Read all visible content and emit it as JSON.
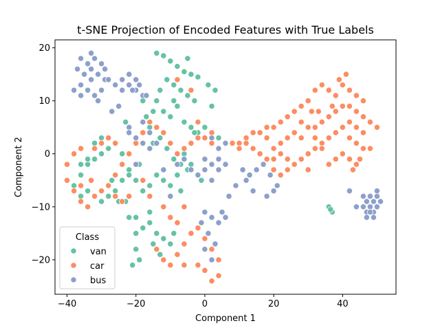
{
  "chart_data": {
    "type": "scatter",
    "title": "t-SNE Projection of Encoded Features with True Labels",
    "xlabel": "Component 1",
    "ylabel": "Component 2",
    "xlim": [
      -43.5,
      55.5
    ],
    "ylim": [
      -26.5,
      21.5
    ],
    "xticks": [
      -40,
      -20,
      0,
      20,
      40
    ],
    "yticks": [
      -20,
      -10,
      0,
      10,
      20
    ],
    "grid": false,
    "legend": {
      "title": "Class",
      "position": "lower-left"
    },
    "series": [
      {
        "name": "van",
        "color": "#66c2a5",
        "points": [
          [
            -14,
            19
          ],
          [
            -12,
            18.5
          ],
          [
            -10,
            17.5
          ],
          [
            -8,
            16.5
          ],
          [
            -6,
            15.5
          ],
          [
            -4,
            15
          ],
          [
            -2,
            14.5
          ],
          [
            -11,
            14
          ],
          [
            -9,
            13
          ],
          [
            -7,
            12
          ],
          [
            -5,
            11
          ],
          [
            -3,
            10
          ],
          [
            -14,
            10
          ],
          [
            -12,
            8
          ],
          [
            -10,
            7
          ],
          [
            -8,
            9
          ],
          [
            -6,
            6
          ],
          [
            -4,
            5
          ],
          [
            -2,
            4
          ],
          [
            0,
            5
          ],
          [
            2,
            4
          ],
          [
            4,
            3
          ],
          [
            -16,
            5
          ],
          [
            -15,
            2
          ],
          [
            -13,
            3
          ],
          [
            -11,
            1
          ],
          [
            -9,
            -1
          ],
          [
            -7,
            -2
          ],
          [
            -5,
            -3
          ],
          [
            -8,
            -4
          ],
          [
            -10,
            -6
          ],
          [
            -12,
            -5
          ],
          [
            -14,
            -4
          ],
          [
            -16,
            -6
          ],
          [
            -18,
            -7
          ],
          [
            -20,
            -5
          ],
          [
            -22,
            -3
          ],
          [
            -24,
            -5
          ],
          [
            -26,
            -7
          ],
          [
            -28,
            -8
          ],
          [
            -30,
            -9
          ],
          [
            -32,
            -8
          ],
          [
            -34,
            -7
          ],
          [
            -36,
            -8
          ],
          [
            -38,
            -6
          ],
          [
            -36,
            -4
          ],
          [
            -34,
            -2
          ],
          [
            -32,
            -1
          ],
          [
            -30,
            0
          ],
          [
            -28,
            1
          ],
          [
            -30,
            3
          ],
          [
            -32,
            2
          ],
          [
            -34,
            -1
          ],
          [
            -36,
            -2
          ],
          [
            -24,
            0
          ],
          [
            -22,
            -4
          ],
          [
            -19,
            -2
          ],
          [
            -18,
            -14
          ],
          [
            -16,
            -13
          ],
          [
            -14,
            -15
          ],
          [
            -12,
            -16
          ],
          [
            -10,
            -17
          ],
          [
            -20,
            -15
          ],
          [
            -20,
            -18
          ],
          [
            -21,
            -21
          ],
          [
            -19,
            -20
          ],
          [
            -22,
            -12
          ],
          [
            -16,
            -11
          ],
          [
            -15,
            -17
          ],
          [
            -13,
            -19
          ],
          [
            -9,
            -15
          ],
          [
            1,
            13
          ],
          [
            3,
            12
          ],
          [
            -3,
            4
          ],
          [
            -1,
            -5
          ],
          [
            -6,
            0
          ],
          [
            -4,
            -2
          ],
          [
            -13,
            12
          ],
          [
            -15,
            8
          ],
          [
            -17,
            7
          ],
          [
            36,
            -10
          ],
          [
            37,
            -11
          ],
          [
            36.5,
            -10.5
          ],
          [
            -25,
            -9
          ],
          [
            -27,
            -5
          ],
          [
            -23,
            -9
          ],
          [
            -20,
            -12
          ],
          [
            2,
            9
          ],
          [
            -9,
            10
          ],
          [
            -7,
            -7
          ],
          [
            -18,
            10
          ],
          [
            -23,
            6
          ],
          [
            -5,
            18
          ]
        ]
      },
      {
        "name": "car",
        "color": "#fc8d62",
        "points": [
          [
            40,
            13
          ],
          [
            42,
            12
          ],
          [
            44,
            11
          ],
          [
            46,
            10
          ],
          [
            38,
            11
          ],
          [
            36,
            12
          ],
          [
            34,
            13
          ],
          [
            32,
            12
          ],
          [
            30,
            10
          ],
          [
            28,
            9
          ],
          [
            26,
            8
          ],
          [
            24,
            7
          ],
          [
            22,
            6
          ],
          [
            20,
            5
          ],
          [
            18,
            5
          ],
          [
            16,
            4
          ],
          [
            14,
            4
          ],
          [
            12,
            3
          ],
          [
            10,
            2
          ],
          [
            8,
            2
          ],
          [
            44,
            8
          ],
          [
            46,
            7
          ],
          [
            48,
            6
          ],
          [
            42,
            6
          ],
          [
            40,
            5
          ],
          [
            38,
            4
          ],
          [
            36,
            3
          ],
          [
            34,
            2
          ],
          [
            32,
            1
          ],
          [
            30,
            0
          ],
          [
            28,
            -1
          ],
          [
            26,
            -2
          ],
          [
            24,
            -3
          ],
          [
            22,
            -4
          ],
          [
            20,
            -3
          ],
          [
            18,
            -1
          ],
          [
            16,
            0
          ],
          [
            14,
            1
          ],
          [
            12,
            2
          ],
          [
            10,
            1
          ],
          [
            42,
            3
          ],
          [
            44,
            2
          ],
          [
            46,
            1
          ],
          [
            40,
            0
          ],
          [
            38,
            -1
          ],
          [
            36,
            -2
          ],
          [
            34,
            1
          ],
          [
            32,
            3
          ],
          [
            30,
            5
          ],
          [
            28,
            6
          ],
          [
            26,
            4
          ],
          [
            24,
            3
          ],
          [
            22,
            2
          ],
          [
            20,
            1
          ],
          [
            18,
            3
          ],
          [
            40,
            9
          ],
          [
            38,
            8
          ],
          [
            36,
            7
          ],
          [
            34,
            6
          ],
          [
            32,
            5
          ],
          [
            45,
            -1
          ],
          [
            44,
            -2
          ],
          [
            42,
            -1
          ],
          [
            46,
            4
          ],
          [
            44,
            5
          ],
          [
            42,
            9
          ],
          [
            39,
            14
          ],
          [
            41,
            15
          ],
          [
            -30,
            12
          ],
          [
            -34,
            12
          ],
          [
            -38,
            0
          ],
          [
            -40,
            -2
          ],
          [
            -40,
            -5
          ],
          [
            -38,
            -7
          ],
          [
            -36,
            -9
          ],
          [
            -34,
            -10
          ],
          [
            -32,
            -8
          ],
          [
            -30,
            -7
          ],
          [
            -28,
            -6
          ],
          [
            -26,
            -4
          ],
          [
            -24,
            -2
          ],
          [
            -22,
            0
          ],
          [
            -20,
            2
          ],
          [
            -18,
            4
          ],
          [
            -16,
            6
          ],
          [
            -14,
            5
          ],
          [
            -12,
            4
          ],
          [
            -10,
            2
          ],
          [
            -8,
            0
          ],
          [
            -6,
            1
          ],
          [
            -4,
            2
          ],
          [
            -2,
            3
          ],
          [
            0,
            3
          ],
          [
            2,
            2
          ],
          [
            -26,
            2
          ],
          [
            -28,
            3
          ],
          [
            -30,
            2
          ],
          [
            -32,
            1
          ],
          [
            -36,
            1
          ],
          [
            -22,
            -8
          ],
          [
            -16,
            -8
          ],
          [
            -12,
            -10
          ],
          [
            -14,
            -18
          ],
          [
            -12,
            -20
          ],
          [
            -10,
            -21
          ],
          [
            -8,
            -19
          ],
          [
            -6,
            -17
          ],
          [
            -4,
            -15
          ],
          [
            -2,
            -14
          ],
          [
            0,
            -16
          ],
          [
            2,
            -18
          ],
          [
            4,
            -20
          ],
          [
            0,
            -22
          ],
          [
            2,
            -24
          ],
          [
            4,
            -23
          ],
          [
            -2,
            -21
          ],
          [
            -6,
            -21
          ],
          [
            -8,
            -13
          ],
          [
            -10,
            -12
          ],
          [
            -6,
            -10
          ],
          [
            2,
            4
          ],
          [
            -4,
            12
          ],
          [
            -8,
            14
          ],
          [
            -2,
            6
          ],
          [
            -18,
            -5
          ],
          [
            -24,
            -9
          ],
          [
            -26,
            -8
          ],
          [
            -33,
            -5
          ],
          [
            -36,
            -6
          ],
          [
            30,
            -3
          ],
          [
            24,
            -1
          ],
          [
            22,
            0
          ],
          [
            20,
            -1
          ],
          [
            28,
            3
          ],
          [
            50,
            5
          ],
          [
            48,
            1
          ],
          [
            43,
            -3
          ],
          [
            37,
            9
          ],
          [
            33,
            8
          ],
          [
            31,
            8
          ]
        ]
      },
      {
        "name": "bus",
        "color": "#8da0cb",
        "points": [
          [
            -36,
            18
          ],
          [
            -34,
            17
          ],
          [
            -32,
            18
          ],
          [
            -30,
            17
          ],
          [
            -35,
            15
          ],
          [
            -33,
            14
          ],
          [
            -31,
            15
          ],
          [
            -29,
            14
          ],
          [
            -36,
            13
          ],
          [
            -34,
            12
          ],
          [
            -32,
            11
          ],
          [
            -30,
            12
          ],
          [
            -28,
            14
          ],
          [
            -26,
            13
          ],
          [
            -24,
            14
          ],
          [
            -22,
            13
          ],
          [
            -20,
            12
          ],
          [
            -18,
            11
          ],
          [
            -33,
            16
          ],
          [
            -37,
            16
          ],
          [
            -29,
            16
          ],
          [
            -31,
            10
          ],
          [
            -24,
            12
          ],
          [
            -22,
            15
          ],
          [
            -20,
            14
          ],
          [
            -18,
            6
          ],
          [
            -16,
            4
          ],
          [
            -18,
            2
          ],
          [
            -20,
            3
          ],
          [
            -16,
            1
          ],
          [
            -22,
            5
          ],
          [
            -14,
            2
          ],
          [
            -8,
            -2
          ],
          [
            -6,
            -1
          ],
          [
            -4,
            -3
          ],
          [
            -2,
            -4
          ],
          [
            0,
            -3
          ],
          [
            2,
            -2
          ],
          [
            4,
            -1
          ],
          [
            6,
            -2
          ],
          [
            4,
            -3
          ],
          [
            2,
            -5
          ],
          [
            0,
            -1
          ],
          [
            2,
            3
          ],
          [
            4,
            1
          ],
          [
            6,
            2
          ],
          [
            11,
            -3
          ],
          [
            13,
            -4
          ],
          [
            15,
            -3
          ],
          [
            17,
            -2
          ],
          [
            19,
            -4
          ],
          [
            21,
            -6
          ],
          [
            20,
            -7
          ],
          [
            18,
            -8
          ],
          [
            14,
            -7
          ],
          [
            12,
            -5
          ],
          [
            0,
            -11
          ],
          [
            2,
            -12
          ],
          [
            4,
            -13
          ],
          [
            6,
            -12
          ],
          [
            1,
            -15
          ],
          [
            3,
            -17
          ],
          [
            0,
            -18
          ],
          [
            2,
            -20
          ],
          [
            5,
            -11
          ],
          [
            -1,
            -13
          ],
          [
            46,
            -10
          ],
          [
            47,
            -11
          ],
          [
            48,
            -10
          ],
          [
            49,
            -11
          ],
          [
            50,
            -10
          ],
          [
            47,
            -9
          ],
          [
            49,
            -9
          ],
          [
            48,
            -8
          ],
          [
            50,
            -8
          ],
          [
            51,
            -9
          ],
          [
            46,
            -8
          ],
          [
            48,
            -11
          ],
          [
            44,
            -10
          ],
          [
            42,
            -7
          ],
          [
            50,
            -7
          ],
          [
            49,
            -12
          ],
          [
            47,
            -12
          ],
          [
            7,
            -8
          ],
          [
            9,
            -6
          ],
          [
            -10,
            -8
          ],
          [
            -12,
            -3
          ],
          [
            -25,
            9
          ],
          [
            -27,
            8
          ],
          [
            -36,
            11
          ],
          [
            -38,
            12
          ],
          [
            -22,
            4
          ],
          [
            -20,
            -2
          ],
          [
            -17,
            11
          ],
          [
            -19,
            13
          ],
          [
            -21,
            12
          ],
          [
            -33,
            19
          ]
        ]
      }
    ]
  }
}
